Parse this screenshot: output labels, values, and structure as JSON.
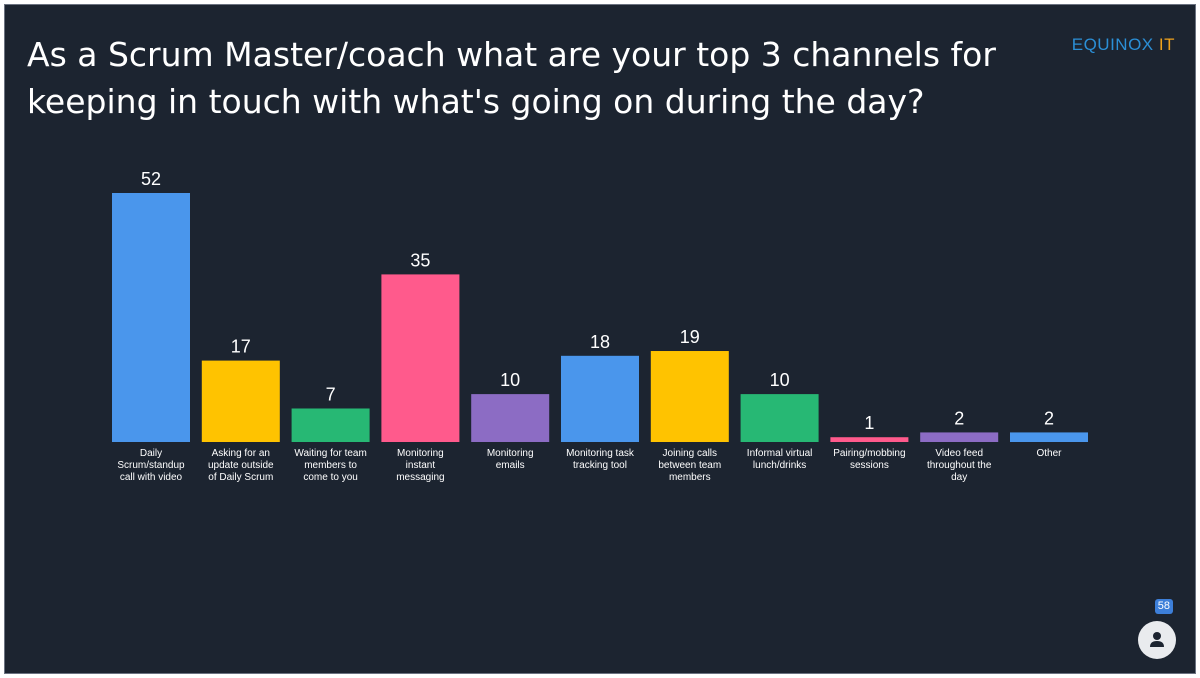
{
  "title": "As a Scrum Master/coach what are your top 3 channels for keeping in touch with what's going on during the day?",
  "brand": {
    "name": "EQUINOX",
    "suffix": " IT",
    "color": "#2b8fd6",
    "accent_color": "#f0a21b"
  },
  "participants": {
    "count": "58",
    "icon": "person-icon"
  },
  "colors": {
    "background": "#1c2430"
  },
  "chart_data": {
    "type": "bar",
    "title": "",
    "xlabel": "",
    "ylabel": "",
    "ylim": [
      0,
      52
    ],
    "grid": false,
    "categories": [
      [
        "Daily",
        "Scrum/standup",
        "call with video"
      ],
      [
        "Asking for an",
        "update outside",
        "of Daily Scrum"
      ],
      [
        "Waiting for team",
        "members to",
        "come to you"
      ],
      [
        "Monitoring",
        "instant",
        "messaging"
      ],
      [
        "Monitoring",
        "emails"
      ],
      [
        "Monitoring task",
        "tracking tool"
      ],
      [
        "Joining calls",
        "between team",
        "members"
      ],
      [
        "Informal virtual",
        "lunch/drinks"
      ],
      [
        "Pairing/mobbing",
        "sessions"
      ],
      [
        "Video feed",
        "throughout the",
        "day"
      ],
      [
        "Other"
      ]
    ],
    "values": [
      52,
      17,
      7,
      35,
      10,
      18,
      19,
      10,
      1,
      2,
      2
    ],
    "colors": [
      "#4a96ec",
      "#ffc300",
      "#27b874",
      "#ff5a8c",
      "#8c6cc4",
      "#4a96ec",
      "#ffc300",
      "#27b874",
      "#ff5a8c",
      "#8c6cc4",
      "#4a96ec"
    ]
  }
}
